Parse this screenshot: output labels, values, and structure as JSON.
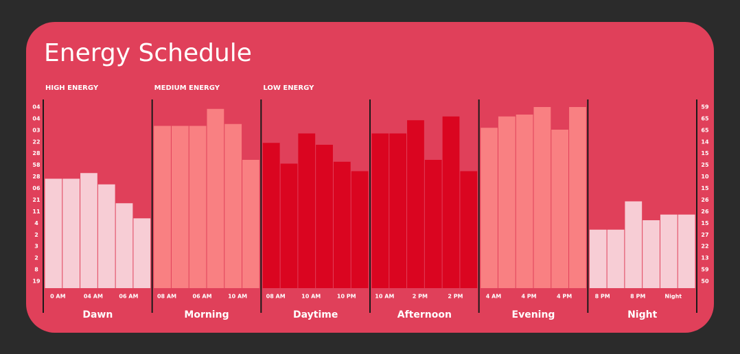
{
  "chart_data": {
    "type": "bar",
    "title": "Energy Schedule",
    "groups": [
      {
        "name": "Dawn",
        "header": "HIGH ENERGY",
        "color": "#f9d9df",
        "values": [
          58,
          58,
          61,
          55,
          45,
          37
        ],
        "tick_labels": [
          "0 AM",
          "04 AM",
          "06 AM"
        ]
      },
      {
        "name": "Morning",
        "header": "MEDIUM ENERGY",
        "color": "#fb8585",
        "values": [
          86,
          86,
          86,
          95,
          87,
          68
        ],
        "tick_labels": [
          "08 AM",
          "06 AM",
          "10 AM"
        ]
      },
      {
        "name": "Daytime",
        "header": "LOW ENERGY",
        "color": "#d9001b",
        "values": [
          77,
          66,
          82,
          76,
          67,
          62
        ],
        "tick_labels": [
          "08 AM",
          "10 AM",
          "10 PM"
        ]
      },
      {
        "name": "Afternoon",
        "color": "#d9001b",
        "values": [
          82,
          82,
          89,
          68,
          91,
          62
        ],
        "tick_labels": [
          "10 AM",
          "2 PM",
          "2 PM"
        ]
      },
      {
        "name": "Evening",
        "color": "#fb8585",
        "values": [
          85,
          91,
          92,
          96,
          84,
          96
        ],
        "tick_labels": [
          "4 AM",
          "4 PM",
          "4 PM"
        ]
      },
      {
        "name": "Night",
        "color": "#f9d9df",
        "values": [
          31,
          31,
          46,
          36,
          39,
          39
        ],
        "tick_labels": [
          "8 PM",
          "8 PM",
          "Night"
        ]
      }
    ],
    "ylim": [
      0,
      100
    ],
    "left_labels": [
      "04",
      "04",
      "03",
      "22",
      "28",
      "58",
      "28",
      "06",
      "21",
      "11",
      "4",
      "2",
      "3",
      "2",
      "8",
      "19"
    ],
    "right_labels": [
      "59",
      "65",
      "65",
      "14",
      "15",
      "25",
      "10",
      "15",
      "26",
      "26",
      "15",
      "27",
      "22",
      "13",
      "59",
      "50"
    ]
  }
}
